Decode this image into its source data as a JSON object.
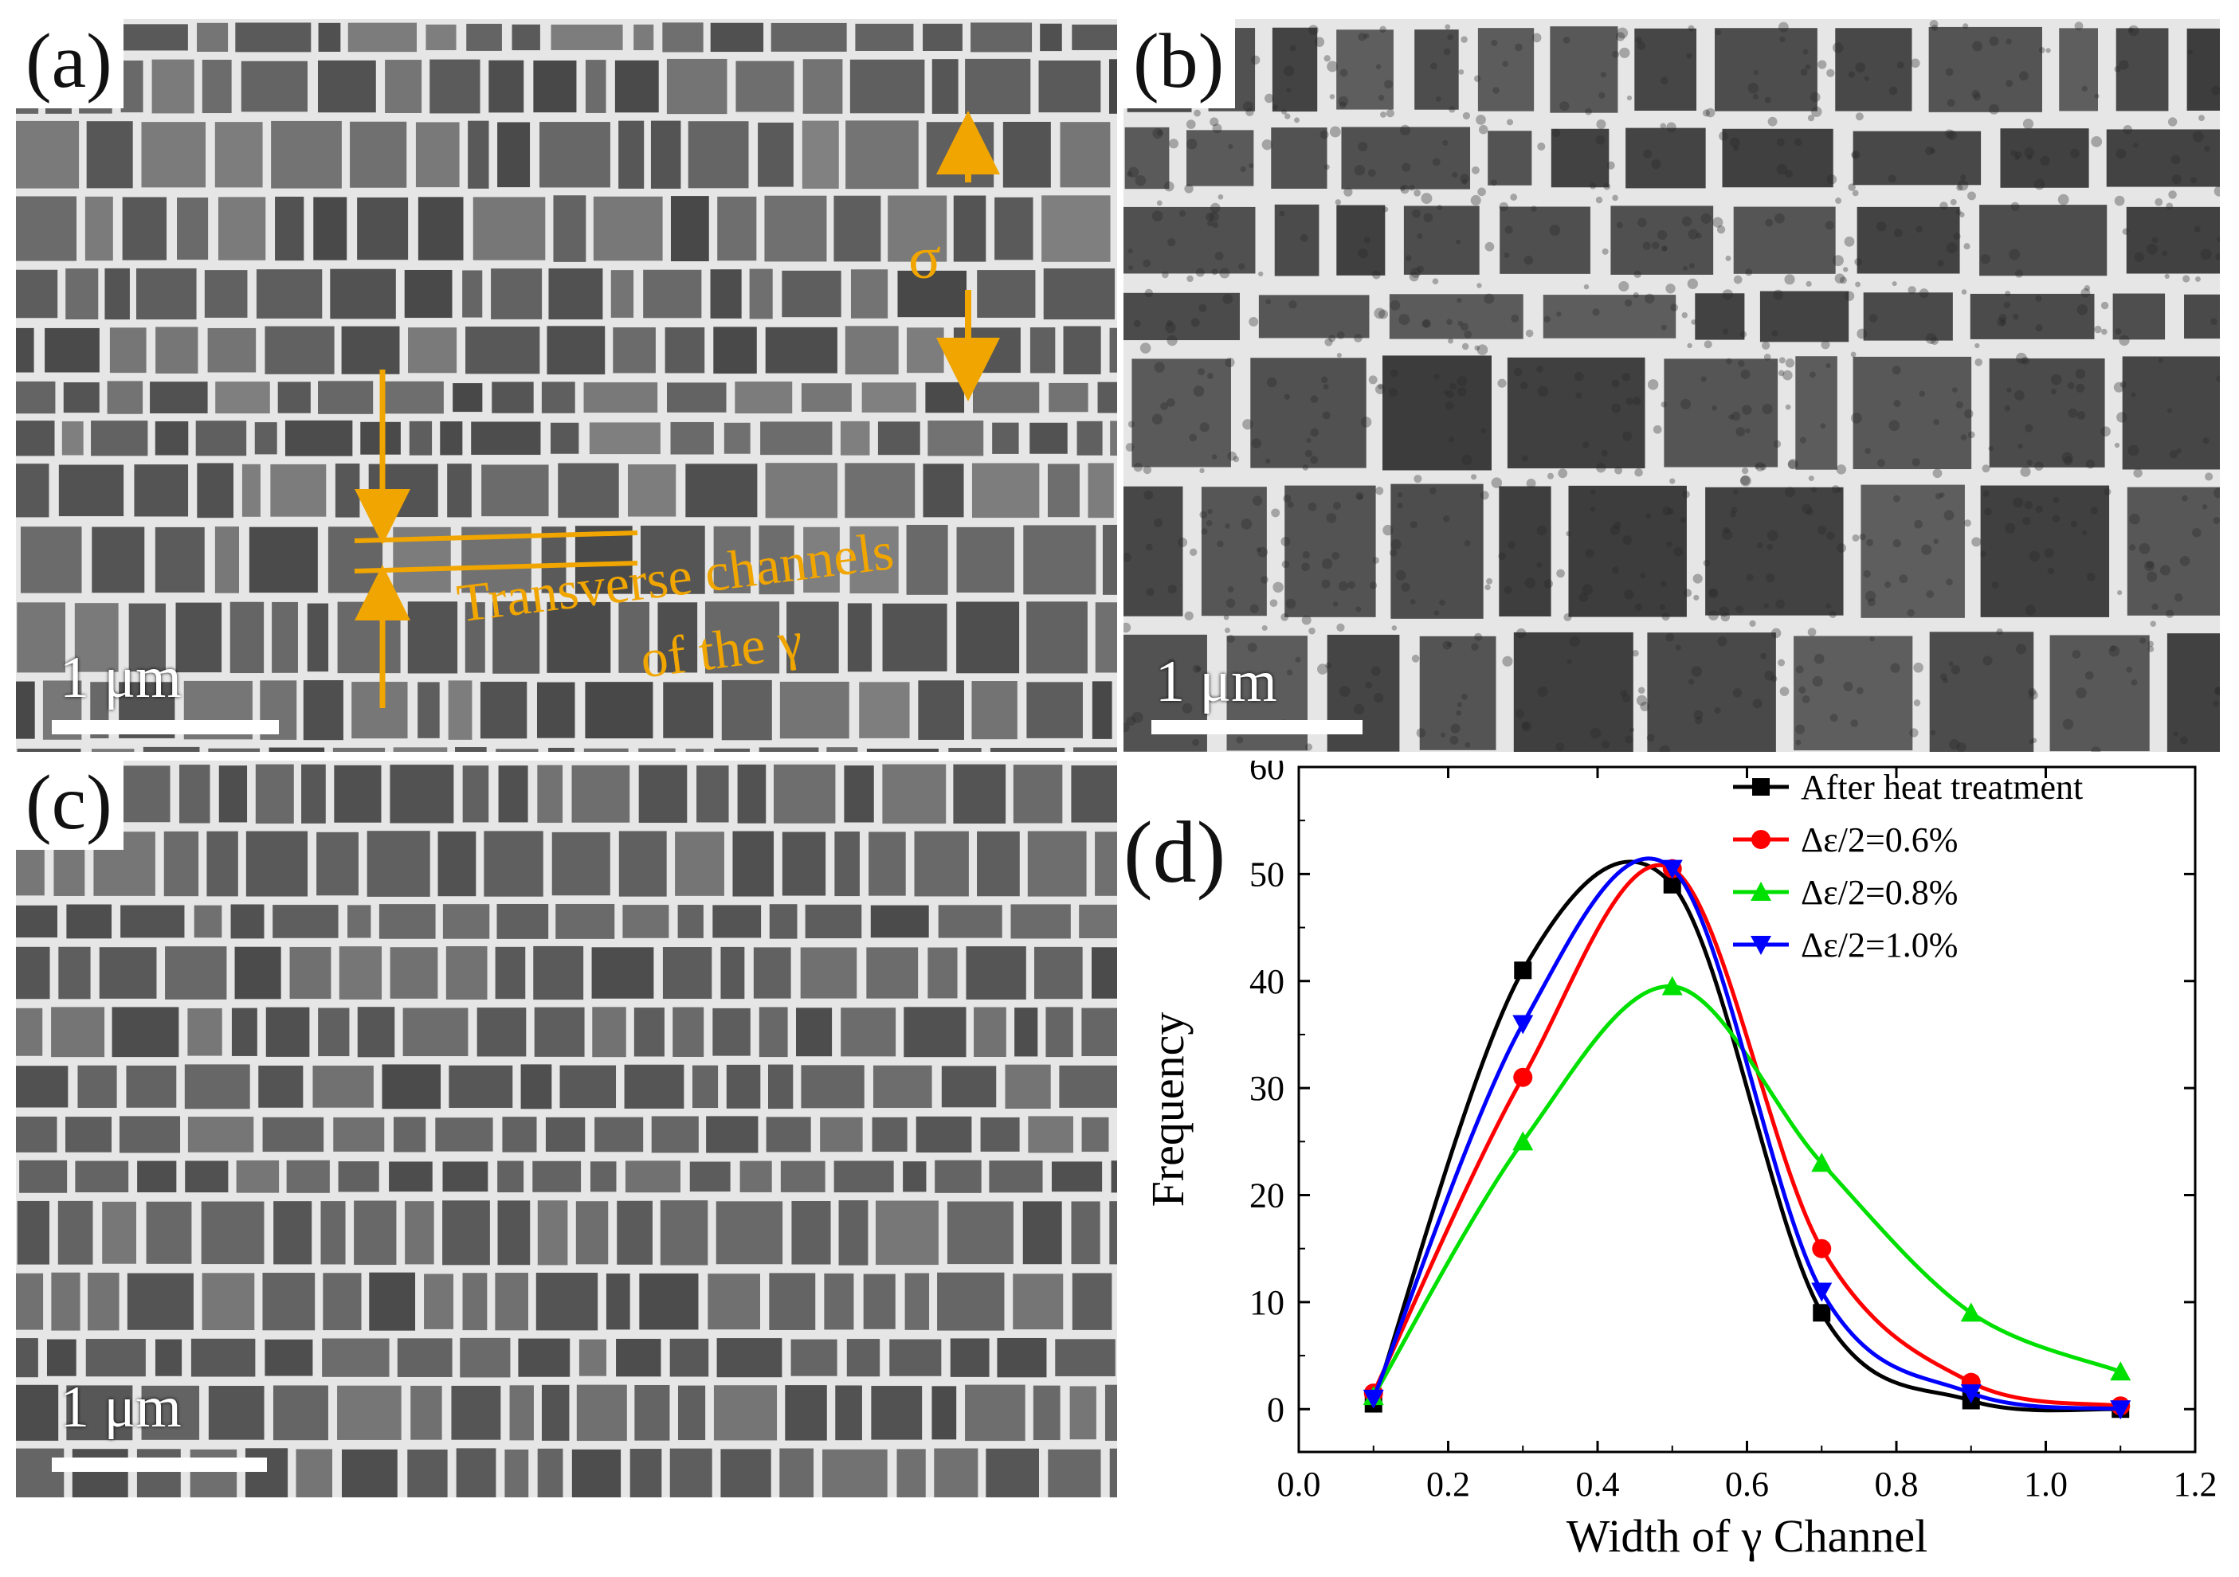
{
  "figure": {
    "panels": [
      {
        "label": "(a)",
        "scale_bar": "1 μm"
      },
      {
        "label": "(b)",
        "scale_bar": "1 μm"
      },
      {
        "label": "(c)",
        "scale_bar": "1 μm"
      },
      {
        "label": "(d)"
      }
    ],
    "annotations": {
      "sigma": "σ",
      "channel_line1": "Transverse channels",
      "channel_line2": "of the γ"
    },
    "colors": {
      "annotation": "#f0a500",
      "micrograph_bg": "#6f6f6f",
      "gamma_channel": "#e6e6e6",
      "precipitate": "#585858"
    }
  },
  "chart_data": {
    "type": "line",
    "title": "",
    "xlabel": "Width of γ Channel",
    "ylabel": "Frequency",
    "xlim": [
      0.0,
      1.2
    ],
    "ylim": [
      -4,
      60
    ],
    "xticks": [
      0.0,
      0.2,
      0.4,
      0.6,
      0.8,
      1.0,
      1.2
    ],
    "xtick_labels": [
      "0.0",
      "0.2",
      "0.4",
      "0.6",
      "0.8",
      "1.0",
      "1.2"
    ],
    "yticks": [
      0,
      10,
      20,
      30,
      40,
      50,
      60
    ],
    "ytick_labels": [
      "0",
      "10",
      "20",
      "30",
      "40",
      "50",
      "60"
    ],
    "x": [
      0.1,
      0.3,
      0.5,
      0.7,
      0.9,
      1.1
    ],
    "legend_position": "top-right",
    "series": [
      {
        "name": "After heat treatment",
        "color": "#000000",
        "marker": "square",
        "values": [
          0.5,
          41,
          49,
          9,
          0.8,
          0
        ]
      },
      {
        "name": "Δε/2=0.6%",
        "color": "#ff0000",
        "marker": "circle",
        "values": [
          1.5,
          31,
          50.5,
          15,
          2.5,
          0.3
        ]
      },
      {
        "name": "Δε/2=0.8%",
        "color": "#00e000",
        "marker": "triangle-up",
        "values": [
          1.2,
          25,
          39.5,
          23,
          9,
          3.5
        ]
      },
      {
        "name": "Δε/2=1.0%",
        "color": "#0000ff",
        "marker": "triangle-down",
        "values": [
          1.0,
          36,
          50.5,
          11,
          1.5,
          0
        ]
      }
    ]
  }
}
